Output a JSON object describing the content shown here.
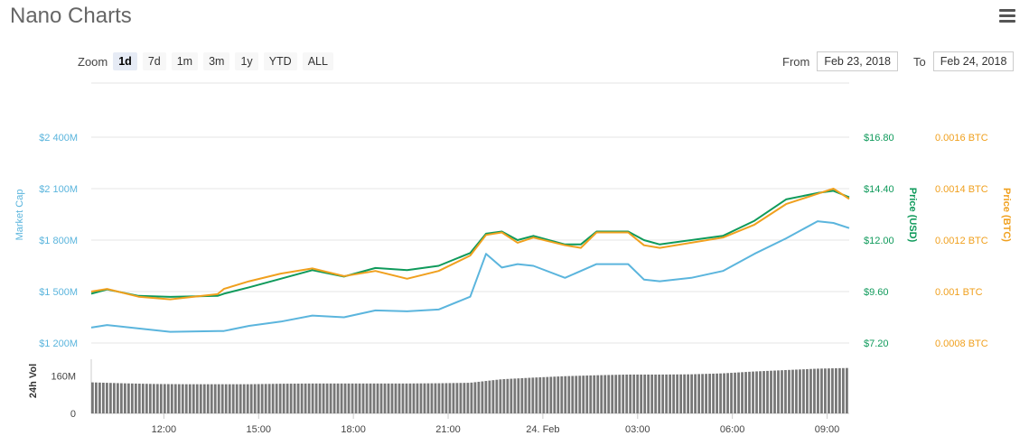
{
  "header": {
    "title": "Nano Charts",
    "menu_icon": "hamburger-menu-icon"
  },
  "zoom": {
    "label": "Zoom",
    "buttons": [
      "1d",
      "7d",
      "1m",
      "3m",
      "1y",
      "YTD",
      "ALL"
    ],
    "active": "1d"
  },
  "range": {
    "from_label": "From",
    "from_value": "Feb 23, 2018",
    "to_label": "To",
    "to_value": "Feb 24, 2018"
  },
  "colors": {
    "market_cap": "#5bb5dd",
    "price_usd": "#0f9a5b",
    "price_btc": "#f0a01e",
    "volume": "#777777",
    "grid": "#e6e6e6"
  },
  "chart_data": {
    "type": "line",
    "x_tick_labels": [
      "12:00",
      "15:00",
      "18:00",
      "21:00",
      "24. Feb",
      "03:00",
      "06:00",
      "09:00"
    ],
    "x_tick_hours": [
      2.3,
      5.3,
      8.3,
      11.3,
      14.3,
      17.3,
      20.3,
      23.3
    ],
    "x_range_hours": [
      0,
      24
    ],
    "axes": {
      "market_cap": {
        "label": "Market Cap",
        "ticks": [
          "$1 200M",
          "$1 500M",
          "$1 800M",
          "$2 100M",
          "$2 400M"
        ],
        "tick_values": [
          1200,
          1500,
          1800,
          2100,
          2400
        ],
        "range": [
          1200,
          2400
        ]
      },
      "price_usd": {
        "label": "Price (USD)",
        "ticks": [
          "$7.20",
          "$9.60",
          "$12.00",
          "$14.40",
          "$16.80"
        ],
        "tick_values": [
          7.2,
          9.6,
          12.0,
          14.4,
          16.8
        ],
        "range": [
          7.2,
          16.8
        ]
      },
      "price_btc": {
        "label": "Price (BTC)",
        "ticks": [
          "0.0008 BTC",
          "0.001 BTC",
          "0.0012 BTC",
          "0.0014 BTC",
          "0.0016 BTC"
        ],
        "tick_values": [
          0.0008,
          0.001,
          0.0012,
          0.0014,
          0.0016
        ],
        "range": [
          0.0008,
          0.0016
        ]
      },
      "volume": {
        "label": "24h Vol",
        "ticks": [
          "0",
          "160M"
        ],
        "tick_values": [
          0,
          160
        ],
        "range": [
          0,
          230
        ]
      }
    },
    "series": [
      {
        "name": "Market Cap",
        "axis": "market_cap",
        "points": [
          [
            0,
            1290
          ],
          [
            0.5,
            1305
          ],
          [
            1.5,
            1285
          ],
          [
            2.5,
            1265
          ],
          [
            4,
            1270
          ],
          [
            4.2,
            1270
          ],
          [
            5,
            1300
          ],
          [
            6,
            1325
          ],
          [
            7,
            1360
          ],
          [
            8,
            1350
          ],
          [
            9,
            1390
          ],
          [
            10,
            1385
          ],
          [
            11,
            1395
          ],
          [
            12,
            1470
          ],
          [
            12.5,
            1720
          ],
          [
            13,
            1640
          ],
          [
            13.5,
            1660
          ],
          [
            14,
            1650
          ],
          [
            15,
            1580
          ],
          [
            15.5,
            1620
          ],
          [
            16,
            1660
          ],
          [
            17,
            1660
          ],
          [
            17.5,
            1570
          ],
          [
            18,
            1560
          ],
          [
            19,
            1580
          ],
          [
            20,
            1620
          ],
          [
            21,
            1720
          ],
          [
            22,
            1810
          ],
          [
            23,
            1910
          ],
          [
            23.5,
            1900
          ],
          [
            24,
            1870
          ]
        ]
      },
      {
        "name": "Price (USD)",
        "axis": "price_usd",
        "points": [
          [
            0,
            9.5
          ],
          [
            0.5,
            9.7
          ],
          [
            1.5,
            9.4
          ],
          [
            2.5,
            9.35
          ],
          [
            4,
            9.4
          ],
          [
            4.2,
            9.5
          ],
          [
            5,
            9.8
          ],
          [
            6,
            10.2
          ],
          [
            7,
            10.6
          ],
          [
            8,
            10.3
          ],
          [
            9,
            10.7
          ],
          [
            10,
            10.6
          ],
          [
            11,
            10.8
          ],
          [
            12,
            11.4
          ],
          [
            12.5,
            12.3
          ],
          [
            13,
            12.4
          ],
          [
            13.5,
            12.0
          ],
          [
            14,
            12.2
          ],
          [
            15,
            11.8
          ],
          [
            15.5,
            11.8
          ],
          [
            16,
            12.4
          ],
          [
            17,
            12.4
          ],
          [
            17.5,
            12.0
          ],
          [
            18,
            11.8
          ],
          [
            19,
            12.0
          ],
          [
            20,
            12.2
          ],
          [
            21,
            12.9
          ],
          [
            22,
            13.9
          ],
          [
            23,
            14.2
          ],
          [
            23.5,
            14.3
          ],
          [
            24,
            14.0
          ]
        ]
      },
      {
        "name": "Price (BTC)",
        "axis": "price_btc",
        "points": [
          [
            0,
            0.001
          ],
          [
            0.5,
            0.00101
          ],
          [
            1.5,
            0.00098
          ],
          [
            2.5,
            0.00097
          ],
          [
            4,
            0.00099
          ],
          [
            4.2,
            0.00101
          ],
          [
            5,
            0.00104
          ],
          [
            6,
            0.00107
          ],
          [
            7,
            0.00109
          ],
          [
            8,
            0.00106
          ],
          [
            9,
            0.00108
          ],
          [
            10,
            0.00105
          ],
          [
            11,
            0.00108
          ],
          [
            12,
            0.00114
          ],
          [
            12.5,
            0.00122
          ],
          [
            13,
            0.00123
          ],
          [
            13.5,
            0.00119
          ],
          [
            14,
            0.00121
          ],
          [
            15,
            0.00118
          ],
          [
            15.5,
            0.00117
          ],
          [
            16,
            0.00123
          ],
          [
            17,
            0.00123
          ],
          [
            17.5,
            0.00118
          ],
          [
            18,
            0.00117
          ],
          [
            19,
            0.00119
          ],
          [
            20,
            0.00121
          ],
          [
            21,
            0.00126
          ],
          [
            22,
            0.00134
          ],
          [
            23,
            0.00138
          ],
          [
            23.5,
            0.0014
          ],
          [
            24,
            0.00136
          ]
        ]
      },
      {
        "name": "24h Vol",
        "axis": "volume",
        "type": "bar",
        "points": [
          [
            0,
            132
          ],
          [
            1,
            128
          ],
          [
            2,
            125
          ],
          [
            3,
            124
          ],
          [
            4,
            124
          ],
          [
            5,
            124
          ],
          [
            6,
            126
          ],
          [
            7,
            127
          ],
          [
            8,
            127
          ],
          [
            9,
            127
          ],
          [
            10,
            127
          ],
          [
            11,
            128
          ],
          [
            12,
            130
          ],
          [
            13,
            145
          ],
          [
            14,
            152
          ],
          [
            15,
            158
          ],
          [
            16,
            162
          ],
          [
            17,
            165
          ],
          [
            18,
            165
          ],
          [
            19,
            166
          ],
          [
            20,
            170
          ],
          [
            21,
            178
          ],
          [
            22,
            184
          ],
          [
            23,
            190
          ],
          [
            24,
            193
          ]
        ]
      }
    ]
  }
}
